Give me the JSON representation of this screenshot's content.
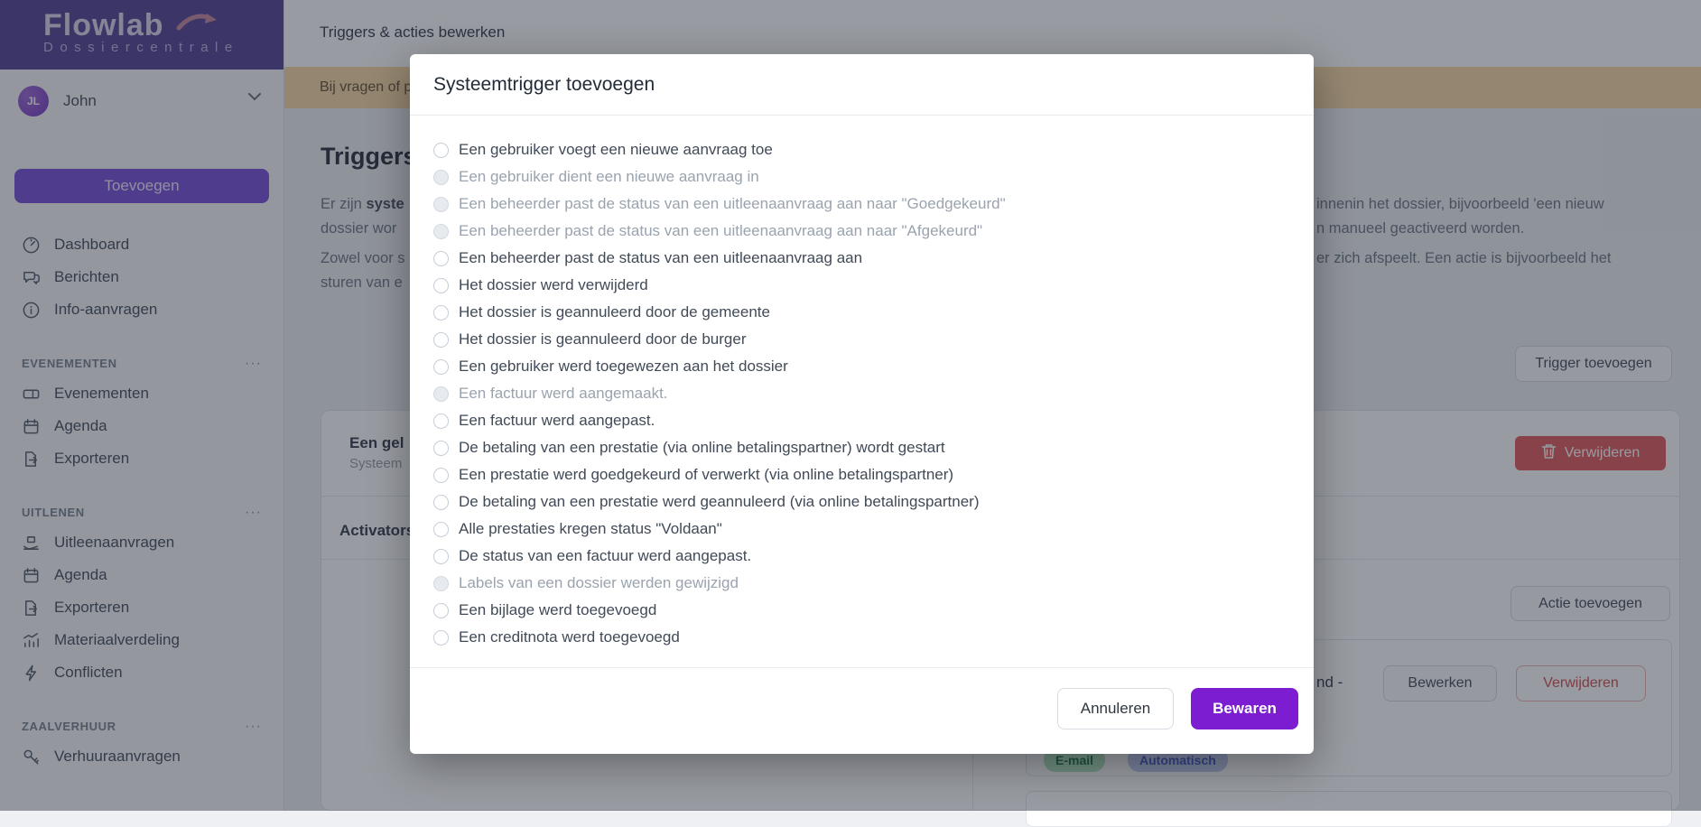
{
  "sidebar": {
    "logo_title": "Flowlab",
    "logo_subtitle": "Dossiercentrale",
    "user": {
      "initials": "JL",
      "name": "John"
    },
    "add_button": "Toevoegen",
    "section_menu_glyph": "···",
    "nav": [
      {
        "label": "Dashboard",
        "icon": "dashboard-icon"
      },
      {
        "label": "Berichten",
        "icon": "chat-icon"
      },
      {
        "label": "Info-aanvragen",
        "icon": "info-icon"
      }
    ],
    "sections": [
      {
        "title": "EVENEMENTEN",
        "items": [
          {
            "label": "Evenementen",
            "icon": "ticket-icon"
          },
          {
            "label": "Agenda",
            "icon": "calendar-icon"
          },
          {
            "label": "Exporteren",
            "icon": "export-icon"
          }
        ]
      },
      {
        "title": "UITLENEN",
        "items": [
          {
            "label": "Uitleenaanvragen",
            "icon": "lend-icon"
          },
          {
            "label": "Agenda",
            "icon": "calendar-icon"
          },
          {
            "label": "Exporteren",
            "icon": "export-icon"
          },
          {
            "label": "Materiaalverdeling",
            "icon": "chart-icon"
          },
          {
            "label": "Conflicten",
            "icon": "bolt-icon"
          }
        ]
      },
      {
        "title": "ZAALVERHUUR",
        "items": [
          {
            "label": "Verhuuraanvragen",
            "icon": "key-icon"
          }
        ]
      }
    ]
  },
  "topbar": {
    "title": "Triggers & acties bewerken"
  },
  "notice": {
    "text_fragment": "Bij vragen of p"
  },
  "content": {
    "heading_fragment": "Triggers",
    "paragraph": {
      "l1_pre": "Er zijn ",
      "l1_bold": "syste",
      "l2": "dossier wor",
      "l3": "Zowel voor s",
      "l4": "sturen van e",
      "r1": "innenin het dossier, bijvoorbeeld 'een nieuw",
      "r2": "n manueel geactiveerd worden.",
      "r3": "er zich afspeelt. Een actie is bijvoorbeeld het"
    },
    "trigger_add_button": "Trigger toevoegen",
    "trigger_card": {
      "title_fragment": "Een gel",
      "subtitle_fragment": "Systeem",
      "delete_button": "Verwijderen",
      "activators_label": "Activators",
      "actions_panel": {
        "add_button": "Actie toevoegen",
        "action_title_fragment": "nd -",
        "edit_button": "Bewerken",
        "delete_button": "Verwijderen",
        "badges": {
          "email": "E-mail",
          "auto": "Automatisch"
        }
      }
    }
  },
  "modal": {
    "title": "Systeemtrigger toevoegen",
    "options": [
      {
        "label": "Een gebruiker voegt een nieuwe aanvraag toe",
        "disabled": false
      },
      {
        "label": "Een gebruiker dient een nieuwe aanvraag in",
        "disabled": true
      },
      {
        "label": "Een beheerder past de status van een uitleenaanvraag aan naar \"Goedgekeurd\"",
        "disabled": true
      },
      {
        "label": "Een beheerder past de status van een uitleenaanvraag aan naar \"Afgekeurd\"",
        "disabled": true
      },
      {
        "label": "Een beheerder past de status van een uitleenaanvraag aan",
        "disabled": false
      },
      {
        "label": "Het dossier werd verwijderd",
        "disabled": false
      },
      {
        "label": "Het dossier is geannuleerd door de gemeente",
        "disabled": false
      },
      {
        "label": "Het dossier is geannuleerd door de burger",
        "disabled": false
      },
      {
        "label": "Een gebruiker werd toegewezen aan het dossier",
        "disabled": false
      },
      {
        "label": "Een factuur werd aangemaakt.",
        "disabled": true
      },
      {
        "label": "Een factuur werd aangepast.",
        "disabled": false
      },
      {
        "label": "De betaling van een prestatie (via online betalingspartner) wordt gestart",
        "disabled": false
      },
      {
        "label": "Een prestatie werd goedgekeurd of verwerkt (via online betalingspartner)",
        "disabled": false
      },
      {
        "label": "De betaling van een prestatie werd geannuleerd (via online betalingspartner)",
        "disabled": false
      },
      {
        "label": "Alle prestaties kregen status \"Voldaan\"",
        "disabled": false
      },
      {
        "label": "De status van een factuur werd aangepast.",
        "disabled": false
      },
      {
        "label": "Labels van een dossier werden gewijzigd",
        "disabled": true
      },
      {
        "label": "Een bijlage werd toegevoegd",
        "disabled": false
      },
      {
        "label": "Een creditnota werd toegevoegd",
        "disabled": false
      }
    ],
    "cancel_button": "Annuleren",
    "save_button": "Bewaren"
  },
  "colors": {
    "brand_purple": "#584798",
    "accent_purple": "#7d1dd1",
    "button_purple": "#7c52d9",
    "danger_red": "#e05f5f",
    "notice_orange": "#f8d9a6",
    "badge_green_bg": "#b3e6c2",
    "badge_green_text": "#237a4a",
    "badge_indigo_bg": "#c3cef5",
    "badge_indigo_text": "#4a5fc9"
  }
}
